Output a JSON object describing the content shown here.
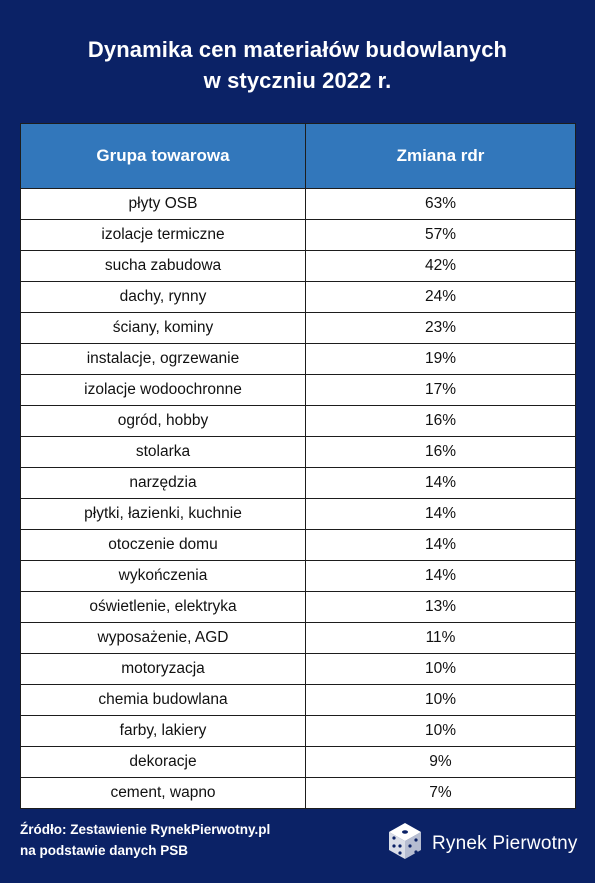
{
  "title": {
    "line1": "Dynamika cen materiałów budowlanych",
    "line2": "w styczniu 2022 r."
  },
  "chart_data": {
    "type": "table",
    "columns": [
      "Grupa towarowa",
      "Zmiana rdr"
    ],
    "rows": [
      {
        "group": "płyty OSB",
        "change": "63%"
      },
      {
        "group": "izolacje termiczne",
        "change": "57%"
      },
      {
        "group": "sucha zabudowa",
        "change": "42%"
      },
      {
        "group": "dachy, rynny",
        "change": "24%"
      },
      {
        "group": "ściany, kominy",
        "change": "23%"
      },
      {
        "group": "instalacje, ogrzewanie",
        "change": "19%"
      },
      {
        "group": "izolacje wodoochronne",
        "change": "17%"
      },
      {
        "group": "ogród, hobby",
        "change": "16%"
      },
      {
        "group": "stolarka",
        "change": "16%"
      },
      {
        "group": "narzędzia",
        "change": "14%"
      },
      {
        "group": "płytki, łazienki, kuchnie",
        "change": "14%"
      },
      {
        "group": "otoczenie domu",
        "change": "14%"
      },
      {
        "group": "wykończenia",
        "change": "14%"
      },
      {
        "group": "oświetlenie, elektryka",
        "change": "13%"
      },
      {
        "group": "wyposażenie, AGD",
        "change": "11%"
      },
      {
        "group": "motoryzacja",
        "change": "10%"
      },
      {
        "group": "chemia budowlana",
        "change": "10%"
      },
      {
        "group": "farby, lakiery",
        "change": "10%"
      },
      {
        "group": "dekoracje",
        "change": "9%"
      },
      {
        "group": "cement, wapno",
        "change": "7%"
      }
    ]
  },
  "footer": {
    "source_line1": "Źródło: Zestawienie RynekPierwotny.pl",
    "source_line2": "na podstawie danych PSB"
  },
  "brand": {
    "name": "Rynek Pierwotny",
    "logo_icon": "dice-cube-icon"
  },
  "colors": {
    "background": "#0b2266",
    "header": "#3277bb"
  }
}
